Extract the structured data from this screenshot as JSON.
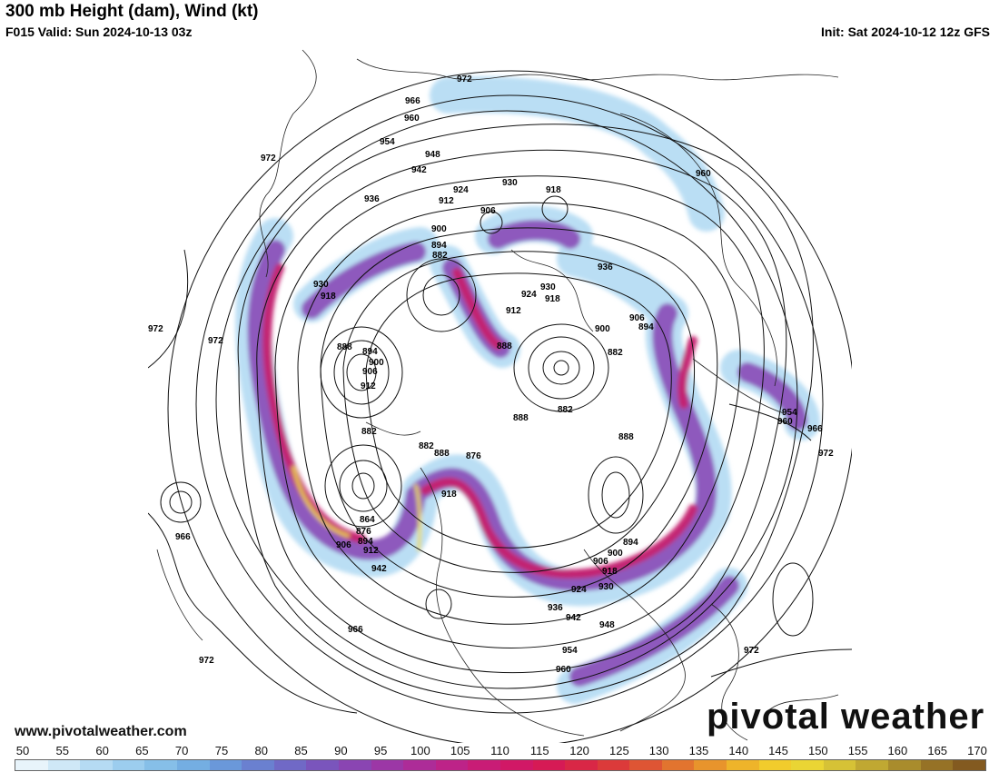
{
  "header": {
    "title": "300 mb Height (dam), Wind (kt)",
    "valid": "F015 Valid: Sun 2024-10-13 03z",
    "init": "Init: Sat 2024-10-12 12z GFS"
  },
  "footer": {
    "website": "www.pivotalweather.com",
    "brand": "pivotal weather"
  },
  "colorbar": {
    "tick_labels": [
      "50",
      "55",
      "60",
      "65",
      "70",
      "75",
      "80",
      "85",
      "90",
      "95",
      "100",
      "105",
      "110",
      "115",
      "120",
      "125",
      "130",
      "135",
      "140",
      "145",
      "150",
      "155",
      "160",
      "165",
      "170"
    ],
    "colors": [
      "#e8f4fb",
      "#cfe8f7",
      "#b5dbf3",
      "#9ccdee",
      "#86bfe8",
      "#74aee2",
      "#6a98da",
      "#6a80d0",
      "#7069c6",
      "#7a55bc",
      "#8a45b2",
      "#9c37a6",
      "#ad2c98",
      "#bd2388",
      "#c91c76",
      "#d11866",
      "#d61a55",
      "#d92746",
      "#dc3a3a",
      "#de5534",
      "#e2742f",
      "#e8942c",
      "#eeb42a",
      "#f1cc2c",
      "#ead534",
      "#d6c236",
      "#c0a832",
      "#a98c2c",
      "#967226",
      "#835a20"
    ]
  },
  "map": {
    "height_labels": [
      {
        "text": "972"
      },
      {
        "text": "966"
      },
      {
        "text": "960"
      },
      {
        "text": "954"
      },
      {
        "text": "948"
      },
      {
        "text": "942"
      },
      {
        "text": "936"
      },
      {
        "text": "924"
      },
      {
        "text": "930"
      },
      {
        "text": "918"
      },
      {
        "text": "912"
      },
      {
        "text": "906"
      },
      {
        "text": "900"
      },
      {
        "text": "894"
      },
      {
        "text": "882"
      },
      {
        "text": "930"
      },
      {
        "text": "918"
      },
      {
        "text": "888"
      },
      {
        "text": "894"
      },
      {
        "text": "900"
      },
      {
        "text": "906"
      },
      {
        "text": "912"
      },
      {
        "text": "972"
      },
      {
        "text": "972"
      },
      {
        "text": "936"
      },
      {
        "text": "930"
      },
      {
        "text": "924"
      },
      {
        "text": "918"
      },
      {
        "text": "912"
      },
      {
        "text": "888"
      },
      {
        "text": "906"
      },
      {
        "text": "900"
      },
      {
        "text": "894"
      },
      {
        "text": "882"
      },
      {
        "text": "888"
      },
      {
        "text": "882"
      },
      {
        "text": "888"
      },
      {
        "text": "882"
      },
      {
        "text": "876"
      },
      {
        "text": "864"
      },
      {
        "text": "876"
      },
      {
        "text": "894"
      },
      {
        "text": "906"
      },
      {
        "text": "912"
      },
      {
        "text": "942"
      },
      {
        "text": "918"
      },
      {
        "text": "882"
      },
      {
        "text": "888"
      },
      {
        "text": "894"
      },
      {
        "text": "900"
      },
      {
        "text": "906"
      },
      {
        "text": "918"
      },
      {
        "text": "924"
      },
      {
        "text": "930"
      },
      {
        "text": "936"
      },
      {
        "text": "942"
      },
      {
        "text": "948"
      },
      {
        "text": "954"
      },
      {
        "text": "960"
      },
      {
        "text": "966"
      },
      {
        "text": "972"
      },
      {
        "text": "966"
      },
      {
        "text": "972"
      },
      {
        "text": "954"
      },
      {
        "text": "960"
      },
      {
        "text": "966"
      },
      {
        "text": "972"
      },
      {
        "text": "960"
      },
      {
        "text": "972"
      }
    ]
  }
}
